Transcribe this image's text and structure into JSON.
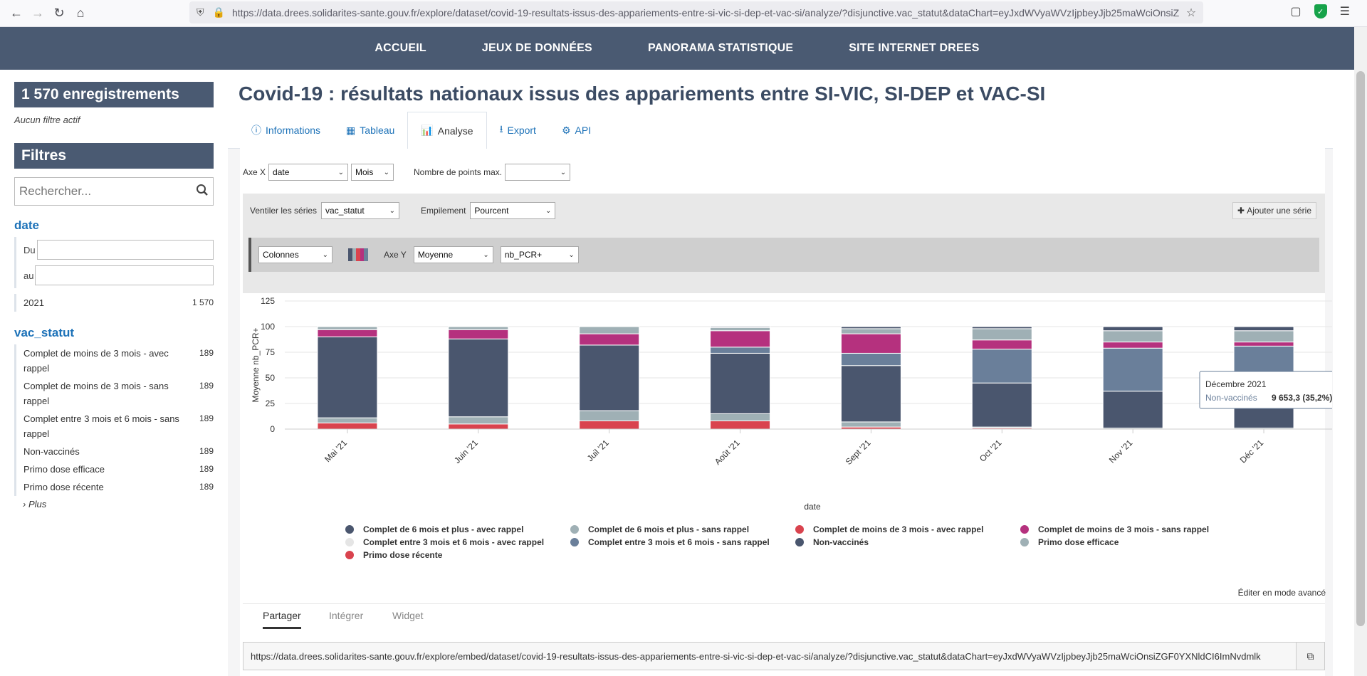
{
  "browser": {
    "url": "https://data.drees.solidarites-sante.gouv.fr/explore/dataset/covid-19-resultats-issus-des-appariements-entre-si-vic-si-dep-et-vac-si/analyze/?disjunctive.vac_statut&dataChart=eyJxdWVyaWVzIjpbeyJjb25maWciOnsiZG"
  },
  "topnav": [
    "ACCUEIL",
    "JEUX DE DONNÉES",
    "PANORAMA STATISTIQUE",
    "SITE INTERNET DREES"
  ],
  "sidebar": {
    "records": "1 570 enregistrements",
    "no_filter": "Aucun filtre actif",
    "filters_title": "Filtres",
    "search_placeholder": "Rechercher...",
    "date_title": "date",
    "date_from": "Du",
    "date_to": "au",
    "date_values": [
      {
        "label": "2021",
        "count": "1 570"
      }
    ],
    "vac_title": "vac_statut",
    "vac_items": [
      {
        "label": "Complet de moins de 3 mois - avec rappel",
        "count": "189"
      },
      {
        "label": "Complet de moins de 3 mois - sans rappel",
        "count": "189"
      },
      {
        "label": "Complet entre 3 mois et 6 mois - sans rappel",
        "count": "189"
      },
      {
        "label": "Non-vaccinés",
        "count": "189"
      },
      {
        "label": "Primo dose efficace",
        "count": "189"
      },
      {
        "label": "Primo dose récente",
        "count": "189"
      }
    ],
    "more": "Plus"
  },
  "main": {
    "title": "Covid-19 : résultats nationaux issus des appariements entre SI-VIC, SI-DEP et VAC-SI",
    "tabs": [
      {
        "label": "Informations",
        "icon": "info-icon"
      },
      {
        "label": "Tableau",
        "icon": "table-icon"
      },
      {
        "label": "Analyse",
        "icon": "chart-icon"
      },
      {
        "label": "Export",
        "icon": "download-icon"
      },
      {
        "label": "API",
        "icon": "gears-icon"
      }
    ]
  },
  "controls": {
    "axe_x_label": "Axe X",
    "axe_x_value": "date",
    "granularity": "Mois",
    "max_points_label": "Nombre de points max.",
    "max_points_value": "",
    "ventiler_label": "Ventiler les séries",
    "ventiler_value": "vac_statut",
    "empilement_label": "Empilement",
    "empilement_value": "Pourcent",
    "add_series": "Ajouter une série",
    "chart_type": "Colonnes",
    "axe_y_label": "Axe Y",
    "axe_y_func": "Moyenne",
    "axe_y_field": "nb_PCR+"
  },
  "chart_data": {
    "type": "bar",
    "stacking": "percent",
    "title": "",
    "xlabel": "date",
    "ylabel": "Moyenne nb_PCR+",
    "ylim": [
      0,
      125
    ],
    "yticks": [
      0,
      25,
      50,
      75,
      100,
      125
    ],
    "categories": [
      "Mai '21",
      "Juin '21",
      "Juil '21",
      "Août '21",
      "Sept '21",
      "Oct '21",
      "Nov '21",
      "Déc '21"
    ],
    "series": [
      {
        "name": "Primo dose récente",
        "color": "#d9434e",
        "values": [
          6,
          5,
          8,
          8,
          2,
          1,
          0,
          0
        ]
      },
      {
        "name": "Primo dose efficace",
        "color": "#9fb0b5",
        "values": [
          5,
          7,
          10,
          7,
          5,
          1,
          1,
          1
        ]
      },
      {
        "name": "Non-vaccinés",
        "color": "#4a566e",
        "values": [
          79,
          76,
          64,
          59,
          55,
          43,
          36,
          35
        ]
      },
      {
        "name": "Complet entre 3 mois et 6 mois - sans rappel",
        "color": "#6a7f9a",
        "values": [
          0,
          0,
          0,
          6,
          12,
          33,
          42,
          45
        ]
      },
      {
        "name": "Complet entre 3 mois et 6 mois - avec rappel",
        "color": "#e5e5e5",
        "values": [
          0,
          0,
          0,
          0,
          0,
          0,
          0,
          0
        ]
      },
      {
        "name": "Complet de moins de 3 mois - sans rappel",
        "color": "#b5317e",
        "values": [
          7,
          9,
          11,
          16,
          19,
          9,
          6,
          4
        ]
      },
      {
        "name": "Complet de moins de 3 mois - avec rappel",
        "color": "#d9434e",
        "values": [
          0,
          0,
          0,
          0,
          0,
          0,
          0,
          0
        ]
      },
      {
        "name": "Complet de 6 mois et plus - sans rappel",
        "color": "#9fb0b5",
        "values": [
          3,
          3,
          7,
          3,
          5,
          11,
          11,
          11
        ]
      },
      {
        "name": "Complet de 6 mois et plus - avec rappel",
        "color": "#4a566e",
        "values": [
          0,
          0,
          0,
          1,
          2,
          2,
          4,
          4
        ]
      }
    ],
    "legend": [
      {
        "name": "Complet de 6 mois et plus - avec rappel",
        "color": "#4a566e"
      },
      {
        "name": "Complet de 6 mois et plus - sans rappel",
        "color": "#9fb0b5"
      },
      {
        "name": "Complet de moins de 3 mois - avec rappel",
        "color": "#d9434e"
      },
      {
        "name": "Complet de moins de 3 mois - sans rappel",
        "color": "#b5317e"
      },
      {
        "name": "Complet entre 3 mois et 6 mois - avec rappel",
        "color": "#e5e5e5"
      },
      {
        "name": "Complet entre 3 mois et 6 mois - sans rappel",
        "color": "#6a7f9a"
      },
      {
        "name": "Non-vaccinés",
        "color": "#4a566e"
      },
      {
        "name": "Primo dose efficace",
        "color": "#9fb0b5"
      },
      {
        "name": "Primo dose récente",
        "color": "#d9434e"
      }
    ],
    "tooltip": {
      "title": "Décembre 2021",
      "series": "Non-vaccinés",
      "value": "9 653,3 (35,2%)"
    }
  },
  "share": {
    "advanced": "Éditer en mode avancé",
    "tabs": [
      "Partager",
      "Intégrer",
      "Widget"
    ],
    "embed_url": "https://data.drees.solidarites-sante.gouv.fr/explore/embed/dataset/covid-19-resultats-issus-des-appariements-entre-si-vic-si-dep-et-vac-si/analyze/?disjunctive.vac_statut&dataChart=eyJxdWVyaWVzIjpbeyJjb25maWciOnsiZGF0YXNldCI6ImNvdmlk"
  }
}
